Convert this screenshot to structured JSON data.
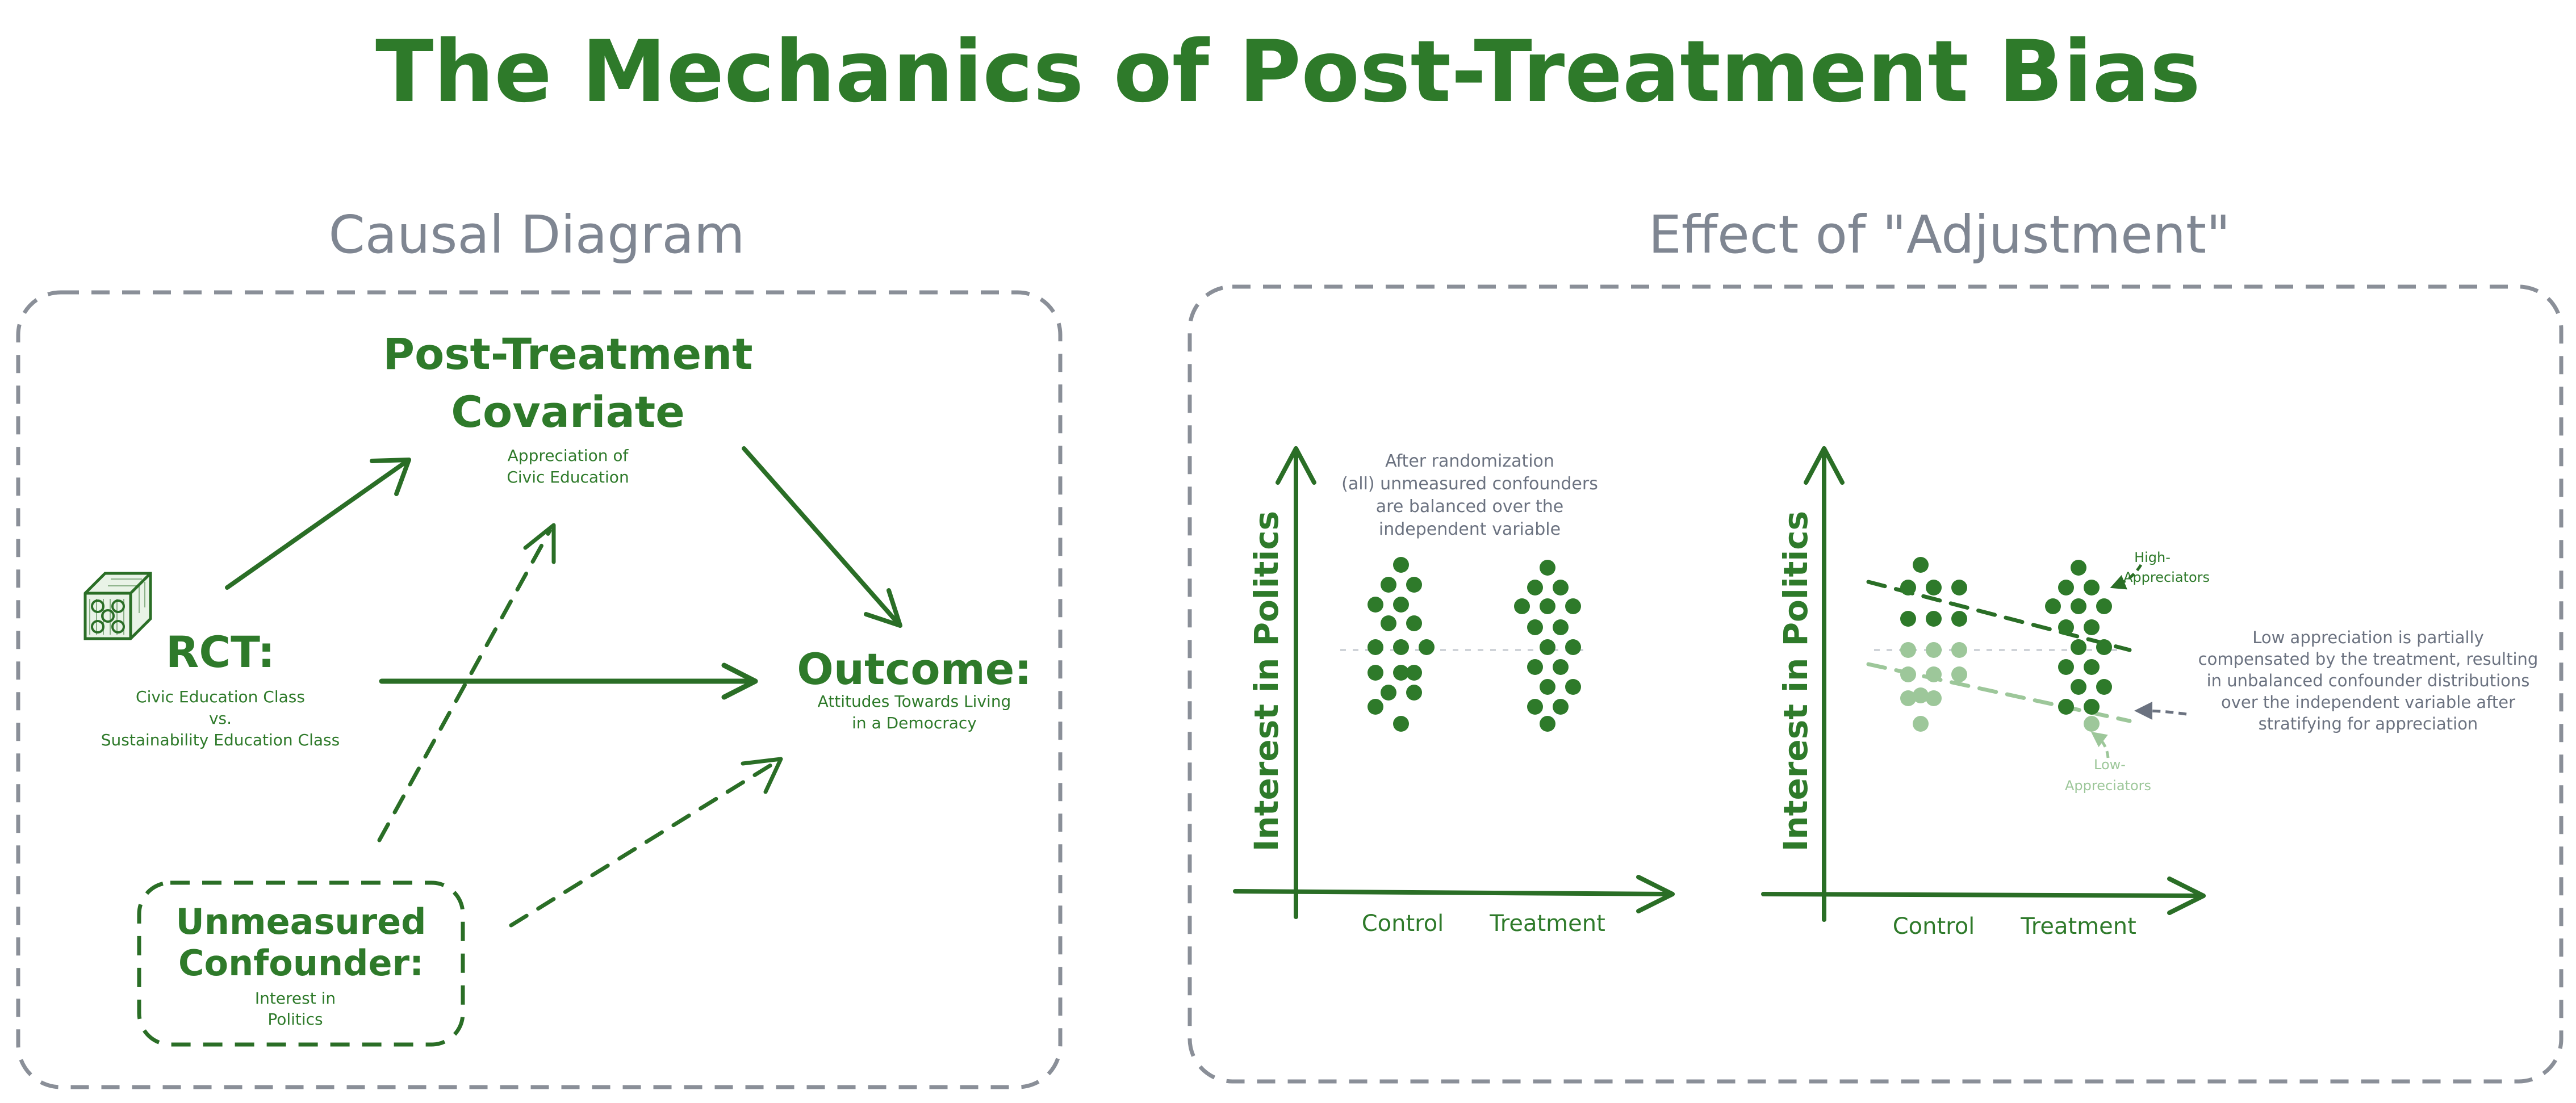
{
  "title": "The Mechanics of Post-Treatment Bias",
  "colors": {
    "green": "#2e7a2a",
    "dark_green": "#2a6e26",
    "light_green": "#9dc79a",
    "gray": "#7f8692",
    "dark_gray": "#6b7280"
  },
  "left_panel": {
    "heading": "Causal Diagram",
    "post_treatment": {
      "title_line1": "Post-Treatment",
      "title_line2": "Covariate",
      "sub_line1": "Appreciation of",
      "sub_line2": "Civic Education"
    },
    "rct": {
      "icon": "dice-icon",
      "title": "RCT:",
      "sub_line1": "Civic Education Class",
      "sub_line2": "vs.",
      "sub_line3": "Sustainability Education Class"
    },
    "outcome": {
      "title": "Outcome:",
      "sub_line1": "Attitudes Towards Living",
      "sub_line2": "in a Democracy"
    },
    "confounder": {
      "title_line1": "Unmeasured",
      "title_line2": "Confounder:",
      "sub_line1": "Interest in",
      "sub_line2": "Politics"
    }
  },
  "right_panel": {
    "heading": "Effect of \"Adjustment\"",
    "plot1": {
      "ylabel": "Interest in Politics",
      "xticks": [
        "Control",
        "Treatment"
      ],
      "note_lines": [
        "After randomization",
        "(all) unmeasured confounders",
        "are balanced over the",
        "independent variable"
      ]
    },
    "plot2": {
      "ylabel": "Interest in Politics",
      "xticks": [
        "Control",
        "Treatment"
      ],
      "high_label_line1": "High-",
      "high_label_line2": "Appreciators",
      "low_label_line1": "Low-",
      "low_label_line2": "Appreciators",
      "note_lines": [
        "Low appreciation is partially",
        "compensated by the treatment, resulting",
        "in unbalanced confounder distributions",
        "over the independent variable after",
        "stratifying for appreciation"
      ]
    }
  }
}
